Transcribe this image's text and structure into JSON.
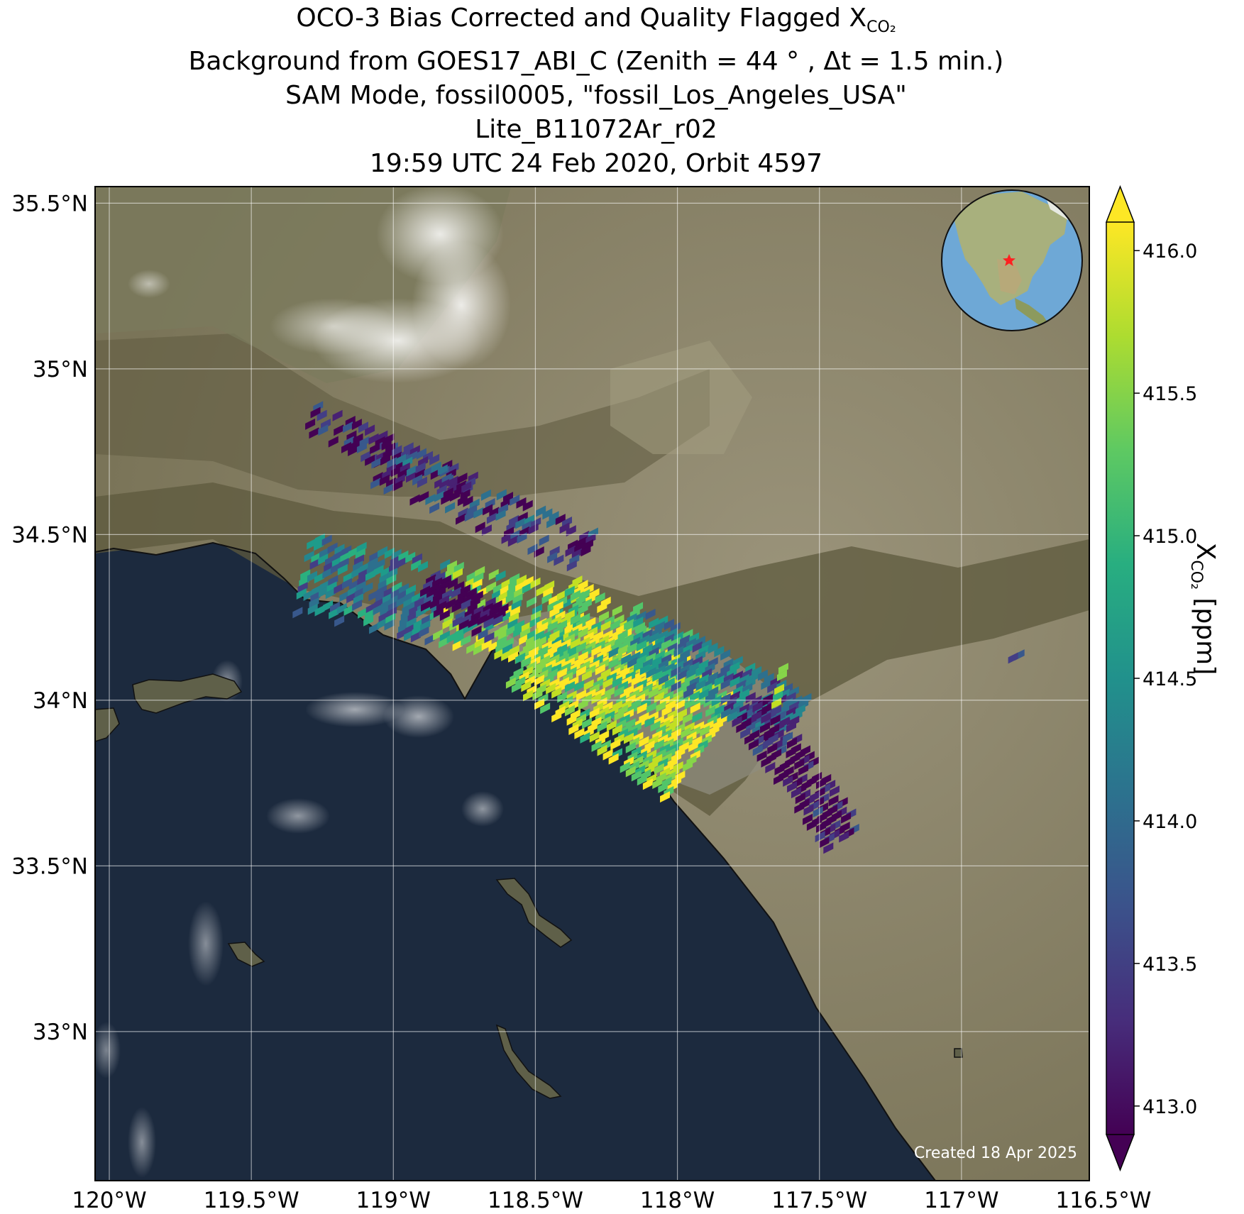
{
  "title": {
    "line1_main": "OCO-3 Bias Corrected and Quality Flagged X",
    "line1_sub": "CO₂",
    "line2": "Background from GOES17_ABI_C (Zenith = 44 ° , Δt =  1.5 min.)",
    "line3": "SAM Mode, fossil0005, \"fossil_Los_Angeles_USA\"",
    "line4": "Lite_B11072Ar_r02",
    "line5": "19:59 UTC 24 Feb 2020, Orbit 4597"
  },
  "map": {
    "lon_range": [
      -120.05,
      -116.55
    ],
    "lat_range": [
      32.55,
      35.55
    ],
    "lon_ticks": [
      {
        "value": -120.0,
        "label": "120°W"
      },
      {
        "value": -119.5,
        "label": "119.5°W"
      },
      {
        "value": -119.0,
        "label": "119°W"
      },
      {
        "value": -118.5,
        "label": "118.5°W"
      },
      {
        "value": -118.0,
        "label": "118°W"
      },
      {
        "value": -117.5,
        "label": "117.5°W"
      },
      {
        "value": -117.0,
        "label": "117°W"
      },
      {
        "value": -116.5,
        "label": "116.5°W"
      }
    ],
    "lat_ticks": [
      {
        "value": 35.5,
        "label": "35.5°N"
      },
      {
        "value": 35.0,
        "label": "35°N"
      },
      {
        "value": 34.5,
        "label": "34.5°N"
      },
      {
        "value": 34.0,
        "label": "34°N"
      },
      {
        "value": 33.5,
        "label": "33.5°N"
      },
      {
        "value": 33.0,
        "label": "33°N"
      }
    ],
    "gridlines": true,
    "target_marker": "red-star-icon",
    "credit": "Created 18 Apr 2025"
  },
  "colorbar": {
    "colormap": "viridis",
    "range": [
      412.9,
      416.1
    ],
    "extend": "both",
    "ticks": [
      {
        "value": 416.0,
        "label": "416.0"
      },
      {
        "value": 415.5,
        "label": "415.5"
      },
      {
        "value": 415.0,
        "label": "415.0"
      },
      {
        "value": 414.5,
        "label": "414.5"
      },
      {
        "value": 414.0,
        "label": "414.0"
      },
      {
        "value": 413.5,
        "label": "413.5"
      },
      {
        "value": 413.0,
        "label": "413.0"
      }
    ],
    "label_main": "X",
    "label_sub": "CO₂",
    "label_unit": " [ppm]"
  },
  "colors": {
    "ocean": "#1c2a3e",
    "land": "#6f6a4e",
    "desert": "#8c8467",
    "globe_ocean": "#6ea8d6",
    "star": "#ff2020"
  }
}
